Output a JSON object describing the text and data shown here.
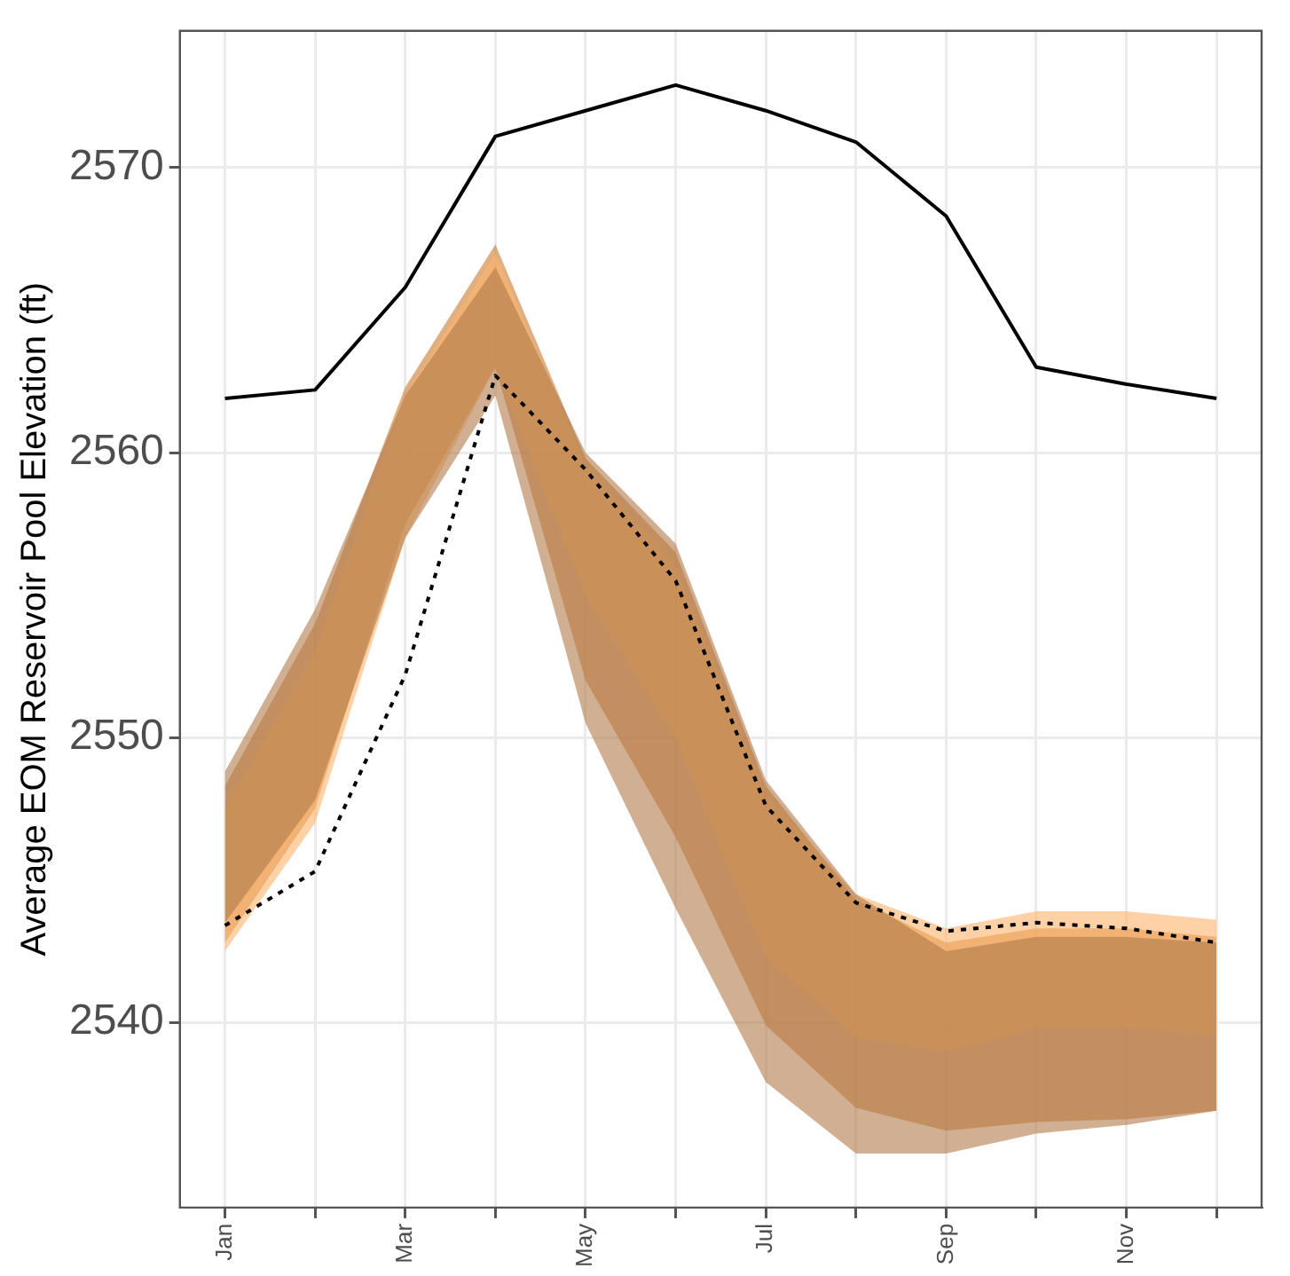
{
  "chart_data": {
    "type": "line",
    "ylabel": "Average EOM Reservoir Pool Elevation (ft)",
    "categories": [
      "Jan",
      null,
      "Mar",
      null,
      "May",
      null,
      "Jul",
      null,
      "Sep",
      null,
      "Nov",
      null
    ],
    "ylim": [
      2533.5,
      2574.8
    ],
    "yticks": [
      2540,
      2550,
      2560,
      2570
    ],
    "grid": true,
    "legend": false,
    "marker": "none",
    "series": [
      {
        "type": "area",
        "color": "#b07a4a",
        "values": [
          null,
          null,
          null,
          null,
          null,
          null,
          null,
          null,
          null,
          null,
          null,
          null
        ],
        "lower": [
          2543.5,
          2547.8,
          2557.0,
          2562.0,
          2550.5,
          2544.0,
          2537.9,
          2535.4,
          2535.4,
          2536.1,
          2536.4,
          2536.9
        ],
        "upper": [
          2548.8,
          2554.5,
          2562.0,
          2566.5,
          2560.0,
          2556.8,
          2548.5,
          2544.5,
          2542.5,
          2543.0,
          2543.0,
          2542.8
        ]
      },
      {
        "type": "area",
        "color": "#fdb46a",
        "values": [
          null,
          null,
          null,
          null,
          null,
          null,
          null,
          null,
          null,
          null,
          null,
          null
        ],
        "lower": [
          2542.5,
          2547.0,
          2557.0,
          2563.0,
          2555.0,
          2550.0,
          2542.3,
          2539.5,
          2539.0,
          2539.8,
          2539.8,
          2539.6
        ],
        "upper": [
          2547.5,
          2553.0,
          2562.0,
          2567.0,
          2559.5,
          2556.0,
          2548.0,
          2544.5,
          2543.3,
          2543.9,
          2543.9,
          2543.6
        ]
      },
      {
        "type": "area",
        "color": "#c97a2e",
        "values": [
          null,
          null,
          null,
          null,
          null,
          null,
          null,
          null,
          null,
          null,
          null,
          null
        ],
        "lower": [
          2542.8,
          2547.5,
          2557.5,
          2563.0,
          2552.0,
          2546.5,
          2539.9,
          2537.0,
          2536.2,
          2536.5,
          2536.6,
          2536.9
        ],
        "upper": [
          2548.3,
          2554.0,
          2562.3,
          2567.3,
          2559.8,
          2556.5,
          2548.3,
          2544.3,
          2542.8,
          2543.3,
          2543.3,
          2543.0
        ]
      },
      {
        "color": "#000000",
        "line_style": "solid",
        "values": [
          2561.9,
          2562.2,
          2565.8,
          2571.1,
          2572.0,
          2572.9,
          2572.0,
          2570.9,
          2568.3,
          2563.0,
          2562.4,
          2561.9
        ]
      },
      {
        "color": "#000000",
        "line_style": "dotted",
        "values": [
          2543.4,
          2545.3,
          2552.2,
          2562.7,
          2559.4,
          2555.5,
          2547.6,
          2544.2,
          2543.2,
          2543.5,
          2543.3,
          2542.8
        ]
      }
    ]
  }
}
